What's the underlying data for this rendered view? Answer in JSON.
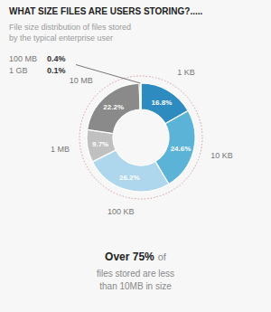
{
  "chart_data": {
    "type": "donut",
    "title": "WHAT SIZE FILES ARE USERS STORING?.....",
    "subtitle": "File size distribution of files stored\nby the typical enterprise user",
    "categories": [
      "1 KB",
      "10 KB",
      "100 KB",
      "1 MB",
      "10 MB",
      "100 MB",
      "1 GB"
    ],
    "values": [
      16.8,
      24.6,
      26.2,
      9.7,
      22.2,
      0.4,
      0.1
    ],
    "value_labels": [
      "16.8%",
      "24.6%",
      "26.2%",
      "9.7%",
      "22.2%",
      "0.4%",
      "0.1%"
    ],
    "colors": [
      "#2e8bbf",
      "#5bb3d8",
      "#aed6ec",
      "#c0c0c0",
      "#8a8a8a",
      "#5a5a5a",
      "#3a3a3a"
    ],
    "data_labels": true,
    "annotations": [
      "Over 75%",
      "of",
      "files stored are less",
      "than 10MB in size"
    ]
  }
}
